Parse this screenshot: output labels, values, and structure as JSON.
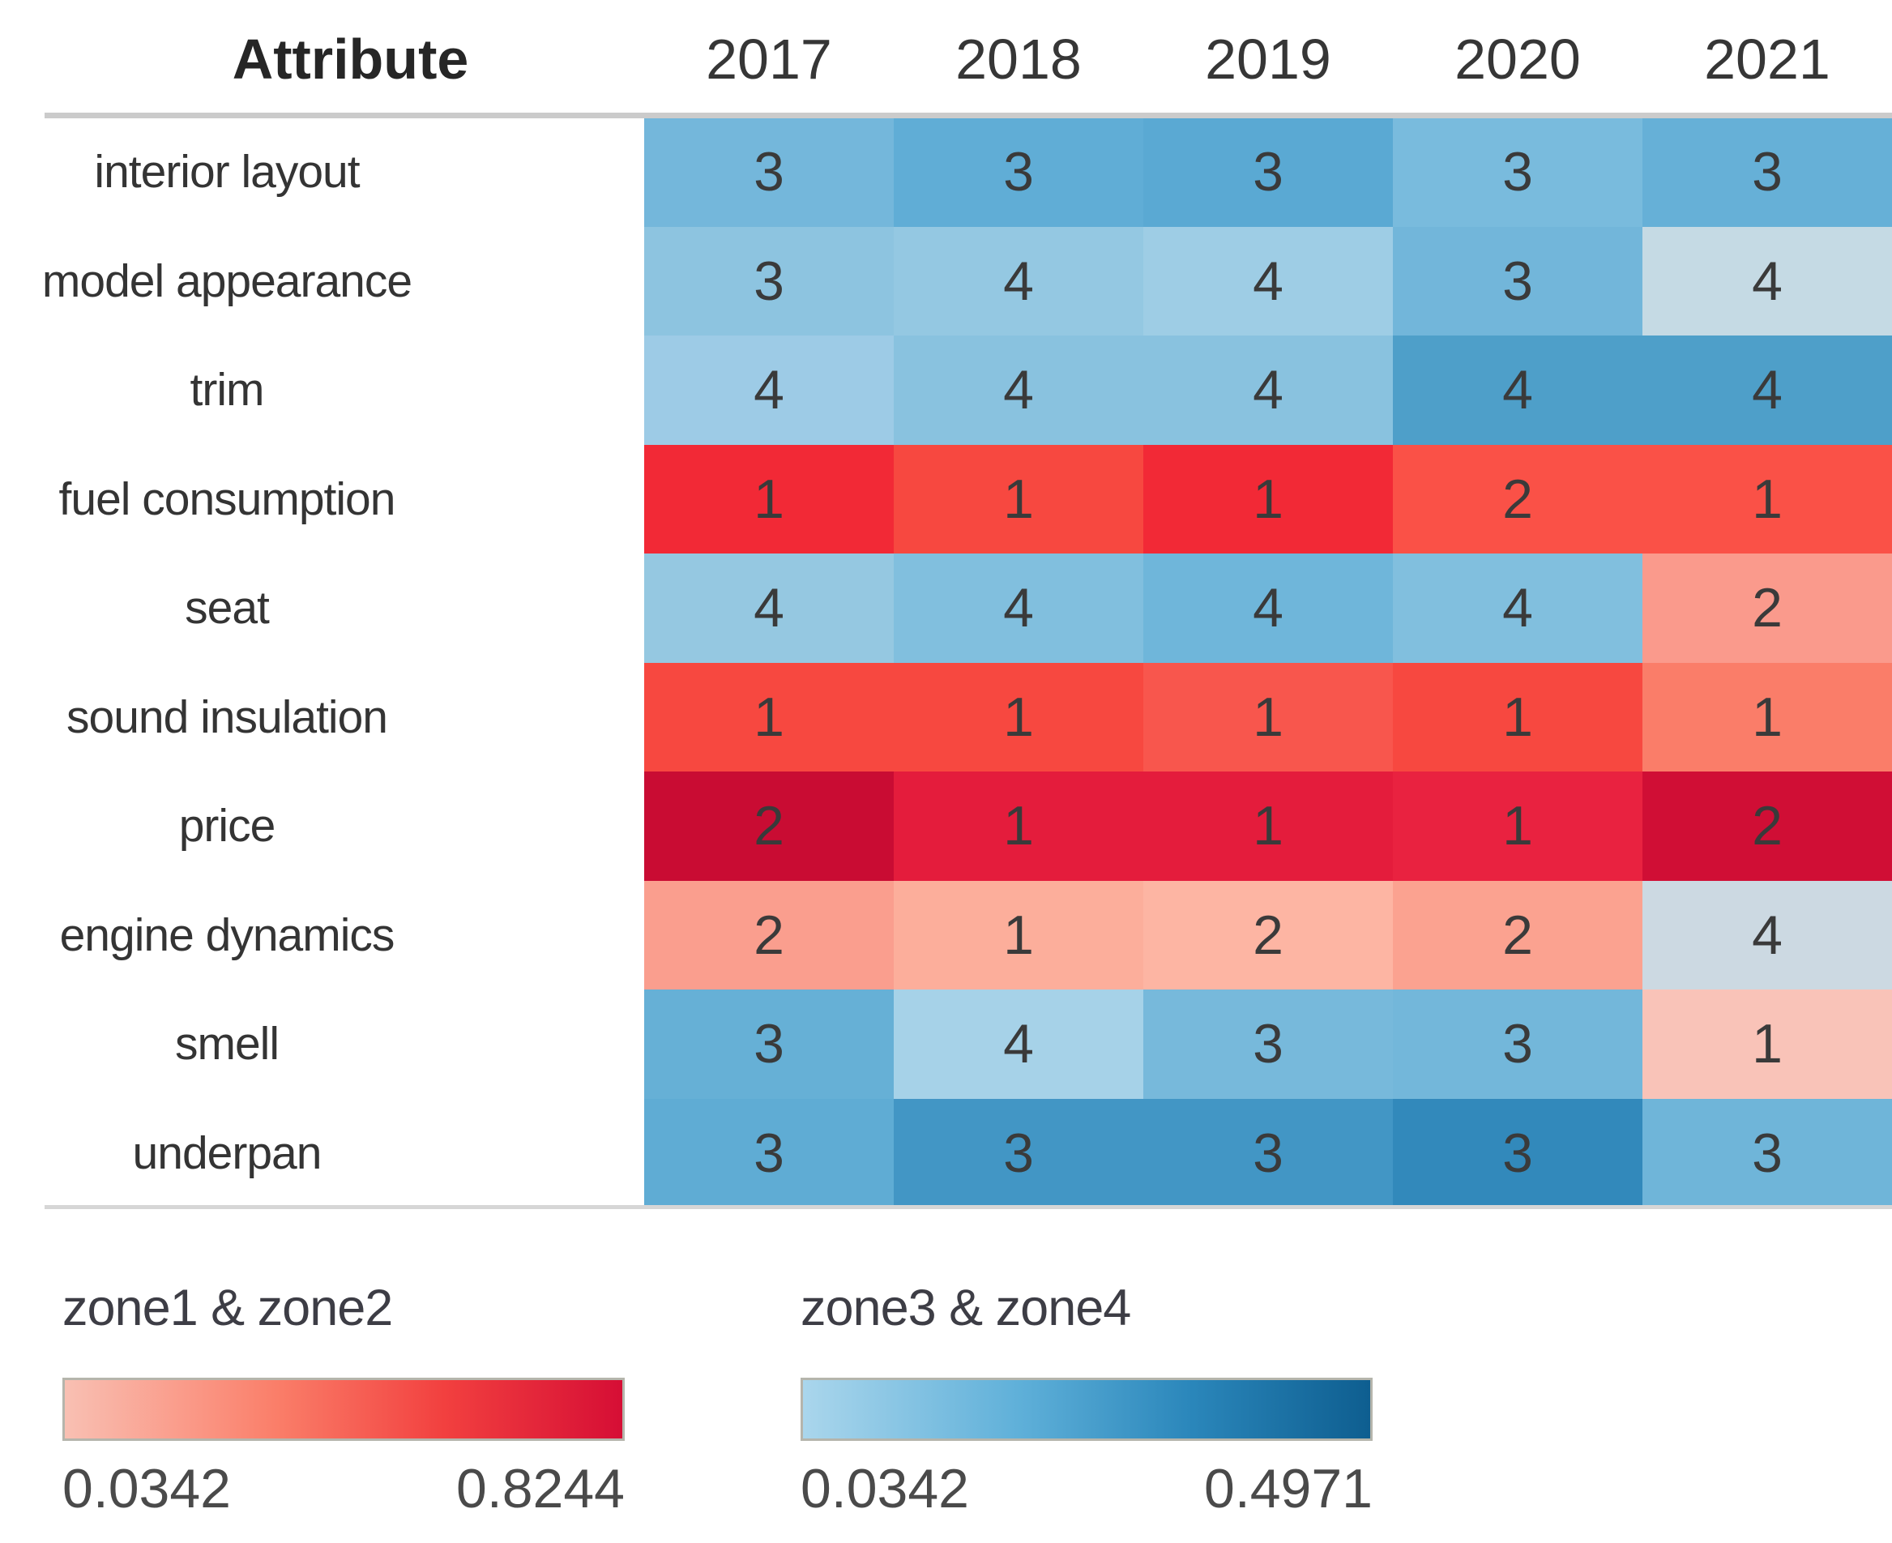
{
  "header": {
    "attribute_label": "Attribute",
    "years": [
      "2017",
      "2018",
      "2019",
      "2020",
      "2021"
    ]
  },
  "rows": [
    {
      "label": "interior layout",
      "cells": [
        {
          "value": "3",
          "color": "#74b7db"
        },
        {
          "value": "3",
          "color": "#60add6"
        },
        {
          "value": "3",
          "color": "#5aa9d3"
        },
        {
          "value": "3",
          "color": "#79bbdd"
        },
        {
          "value": "3",
          "color": "#66b0d7"
        }
      ]
    },
    {
      "label": "model appearance",
      "cells": [
        {
          "value": "3",
          "color": "#8dc4e0"
        },
        {
          "value": "4",
          "color": "#94c8e2"
        },
        {
          "value": "4",
          "color": "#9ecde5"
        },
        {
          "value": "3",
          "color": "#72b6da"
        },
        {
          "value": "4",
          "color": "#c5dae4"
        }
      ]
    },
    {
      "label": "trim",
      "cells": [
        {
          "value": "4",
          "color": "#9dcbe6"
        },
        {
          "value": "4",
          "color": "#89c2df"
        },
        {
          "value": "4",
          "color": "#89c2df"
        },
        {
          "value": "4",
          "color": "#4e9fc9"
        },
        {
          "value": "4",
          "color": "#4e9fc9"
        }
      ]
    },
    {
      "label": "fuel consumption",
      "cells": [
        {
          "value": "1",
          "color": "#f22936"
        },
        {
          "value": "1",
          "color": "#f74840"
        },
        {
          "value": "1",
          "color": "#f22936"
        },
        {
          "value": "2",
          "color": "#fa5147"
        },
        {
          "value": "1",
          "color": "#fa5147"
        }
      ]
    },
    {
      "label": "seat",
      "cells": [
        {
          "value": "4",
          "color": "#95c8e1"
        },
        {
          "value": "4",
          "color": "#81bfde"
        },
        {
          "value": "4",
          "color": "#6fb6da"
        },
        {
          "value": "4",
          "color": "#81bfde"
        },
        {
          "value": "2",
          "color": "#fa9a8c"
        }
      ]
    },
    {
      "label": "sound insulation",
      "cells": [
        {
          "value": "1",
          "color": "#f74840"
        },
        {
          "value": "1",
          "color": "#f74840"
        },
        {
          "value": "1",
          "color": "#f8564d"
        },
        {
          "value": "1",
          "color": "#f74840"
        },
        {
          "value": "1",
          "color": "#fa7d69"
        }
      ]
    },
    {
      "label": "price",
      "cells": [
        {
          "value": "2",
          "color": "#c90c33"
        },
        {
          "value": "1",
          "color": "#e41c3c"
        },
        {
          "value": "1",
          "color": "#e41c3c"
        },
        {
          "value": "1",
          "color": "#e92240"
        },
        {
          "value": "2",
          "color": "#d00e35"
        }
      ]
    },
    {
      "label": "engine dynamics",
      "cells": [
        {
          "value": "2",
          "color": "#fa9e8e"
        },
        {
          "value": "1",
          "color": "#fcae9b"
        },
        {
          "value": "2",
          "color": "#fdb5a3"
        },
        {
          "value": "2",
          "color": "#fba290"
        },
        {
          "value": "4",
          "color": "#ccd9e2"
        }
      ]
    },
    {
      "label": "smell",
      "cells": [
        {
          "value": "3",
          "color": "#66b0d6"
        },
        {
          "value": "4",
          "color": "#a6d2e8"
        },
        {
          "value": "3",
          "color": "#77b9db"
        },
        {
          "value": "3",
          "color": "#73b7da"
        },
        {
          "value": "1",
          "color": "#f9c3b8"
        }
      ]
    },
    {
      "label": "underpan",
      "cells": [
        {
          "value": "3",
          "color": "#5facd4"
        },
        {
          "value": "3",
          "color": "#4296c5"
        },
        {
          "value": "3",
          "color": "#4296c5"
        },
        {
          "value": "3",
          "color": "#3289bb"
        },
        {
          "value": "3",
          "color": "#6fb5d9"
        }
      ]
    }
  ],
  "legends": [
    {
      "title": "zone1 & zone2",
      "min_label": "0.0342",
      "max_label": "0.8244",
      "gradient": [
        "#f9c0b3",
        "#fa7e69",
        "#f2403f",
        "#d60e35"
      ]
    },
    {
      "title": "zone3 & zone4",
      "min_label": "0.0342",
      "max_label": "0.4971",
      "gradient": [
        "#aad6ec",
        "#5fb0d9",
        "#2b87bb",
        "#0e5e90"
      ]
    }
  ],
  "chart_data": {
    "type": "heatmap",
    "title": "",
    "columns": [
      "2017",
      "2018",
      "2019",
      "2020",
      "2021"
    ],
    "rows": [
      "interior layout",
      "model appearance",
      "trim",
      "fuel consumption",
      "seat",
      "sound insulation",
      "price",
      "engine dynamics",
      "smell",
      "underpan"
    ],
    "values": [
      [
        3,
        3,
        3,
        3,
        3
      ],
      [
        3,
        4,
        4,
        3,
        4
      ],
      [
        4,
        4,
        4,
        4,
        4
      ],
      [
        1,
        1,
        1,
        2,
        1
      ],
      [
        4,
        4,
        4,
        4,
        2
      ],
      [
        1,
        1,
        1,
        1,
        1
      ],
      [
        2,
        1,
        1,
        1,
        2
      ],
      [
        2,
        1,
        2,
        2,
        4
      ],
      [
        3,
        4,
        3,
        3,
        1
      ],
      [
        3,
        3,
        3,
        3,
        3
      ]
    ],
    "colorbars": [
      {
        "label": "zone1 & zone2",
        "range": [
          0.0342,
          0.8244
        ],
        "palette": "red"
      },
      {
        "label": "zone3 & zone4",
        "range": [
          0.0342,
          0.4971
        ],
        "palette": "blue"
      }
    ],
    "legend_position": "bottom",
    "grid": false
  }
}
